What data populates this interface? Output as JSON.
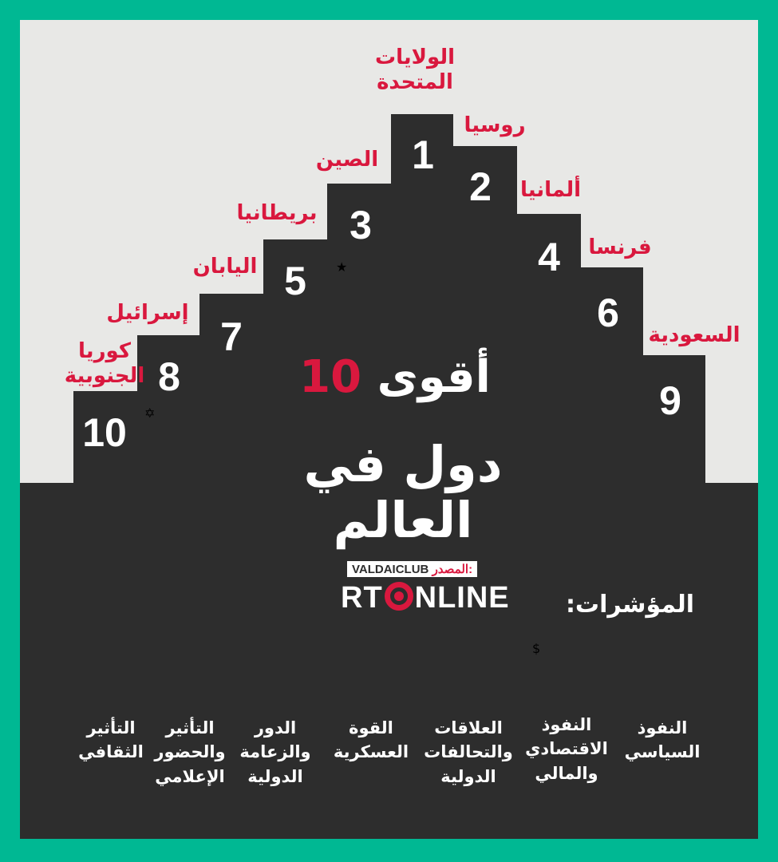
{
  "title": {
    "prefix": "أقوى",
    "number": "10",
    "line2": "دول في",
    "line3": "العالم"
  },
  "countries": [
    {
      "rank": "1",
      "name_lines": [
        "الولايات",
        "المتحدة"
      ],
      "flag": "usa-flag"
    },
    {
      "rank": "2",
      "name_lines": [
        "روسيا"
      ],
      "flag": "russia-flag"
    },
    {
      "rank": "3",
      "name_lines": [
        "الصين"
      ],
      "flag": "china-flag"
    },
    {
      "rank": "4",
      "name_lines": [
        "ألمانيا"
      ],
      "flag": "germany-flag"
    },
    {
      "rank": "5",
      "name_lines": [
        "بريطانيا"
      ],
      "flag": "uk-flag"
    },
    {
      "rank": "6",
      "name_lines": [
        "فرنسا"
      ],
      "flag": "france-flag"
    },
    {
      "rank": "7",
      "name_lines": [
        "اليابان"
      ],
      "flag": "japan-flag"
    },
    {
      "rank": "8",
      "name_lines": [
        "إسرائيل"
      ],
      "flag": "israel-flag"
    },
    {
      "rank": "9",
      "name_lines": [
        "السعودية"
      ],
      "flag": "saudi-flag"
    },
    {
      "rank": "10",
      "name_lines": [
        "كوريا",
        "الجنوبية"
      ],
      "flag": "south-korea-flag"
    }
  ],
  "source": {
    "label": "المصدر:",
    "name": "VALDAICLUB",
    "brand_left": "RT",
    "brand_right": "NLINE"
  },
  "indicators_heading": "المؤشرات:",
  "indicators": [
    {
      "icon": "government-building-icon",
      "lines": [
        "النفوذ",
        "السياسي"
      ]
    },
    {
      "icon": "globe-dollar-icon",
      "lines": [
        "النفوذ",
        "الاقتصادي",
        "والمالي"
      ]
    },
    {
      "icon": "globe-icon",
      "lines": [
        "العلاقات",
        "والتحالفات",
        "الدولية"
      ]
    },
    {
      "icon": "soldier-icon",
      "lines": [
        "القوة",
        "العسكرية"
      ]
    },
    {
      "icon": "speaker-podium-icon",
      "lines": [
        "الدور",
        "والزعامة",
        "الدولية"
      ]
    },
    {
      "icon": "play-button-icon",
      "lines": [
        "التأثير",
        "والحضور",
        "الإعلامي"
      ]
    },
    {
      "icon": "theater-masks-icon",
      "lines": [
        "التأثير",
        "الثقافي"
      ]
    }
  ],
  "colors": {
    "border": "#00b893",
    "dark": "#2d2d2d",
    "red": "#d9183e",
    "light": "#e8e8e6"
  }
}
